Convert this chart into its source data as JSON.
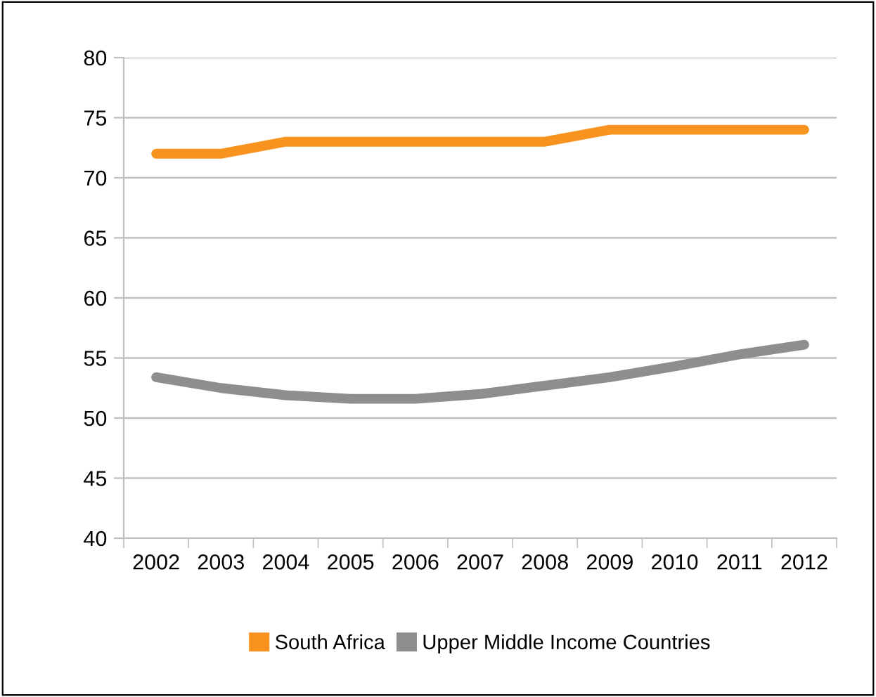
{
  "chart_data": {
    "type": "line",
    "categories": [
      "2002",
      "2003",
      "2004",
      "2005",
      "2006",
      "2007",
      "2008",
      "2009",
      "2010",
      "2011",
      "2012"
    ],
    "series": [
      {
        "name": "South Africa",
        "color": "#f7931e",
        "values": [
          72,
          72,
          73,
          73,
          73,
          73,
          73,
          74,
          74,
          74,
          74
        ]
      },
      {
        "name": "Upper Middle Income Countries",
        "color": "#8e8e91",
        "values": [
          53.4,
          52.5,
          51.9,
          51.6,
          51.6,
          52.0,
          52.7,
          53.4,
          54.3,
          55.3,
          56.1
        ]
      }
    ],
    "ylim": [
      40,
      80
    ],
    "yticks": [
      40,
      45,
      50,
      55,
      60,
      65,
      70,
      75,
      80
    ],
    "grid": "y",
    "legend": "bottom",
    "marker": "none",
    "line_style": "solid"
  }
}
